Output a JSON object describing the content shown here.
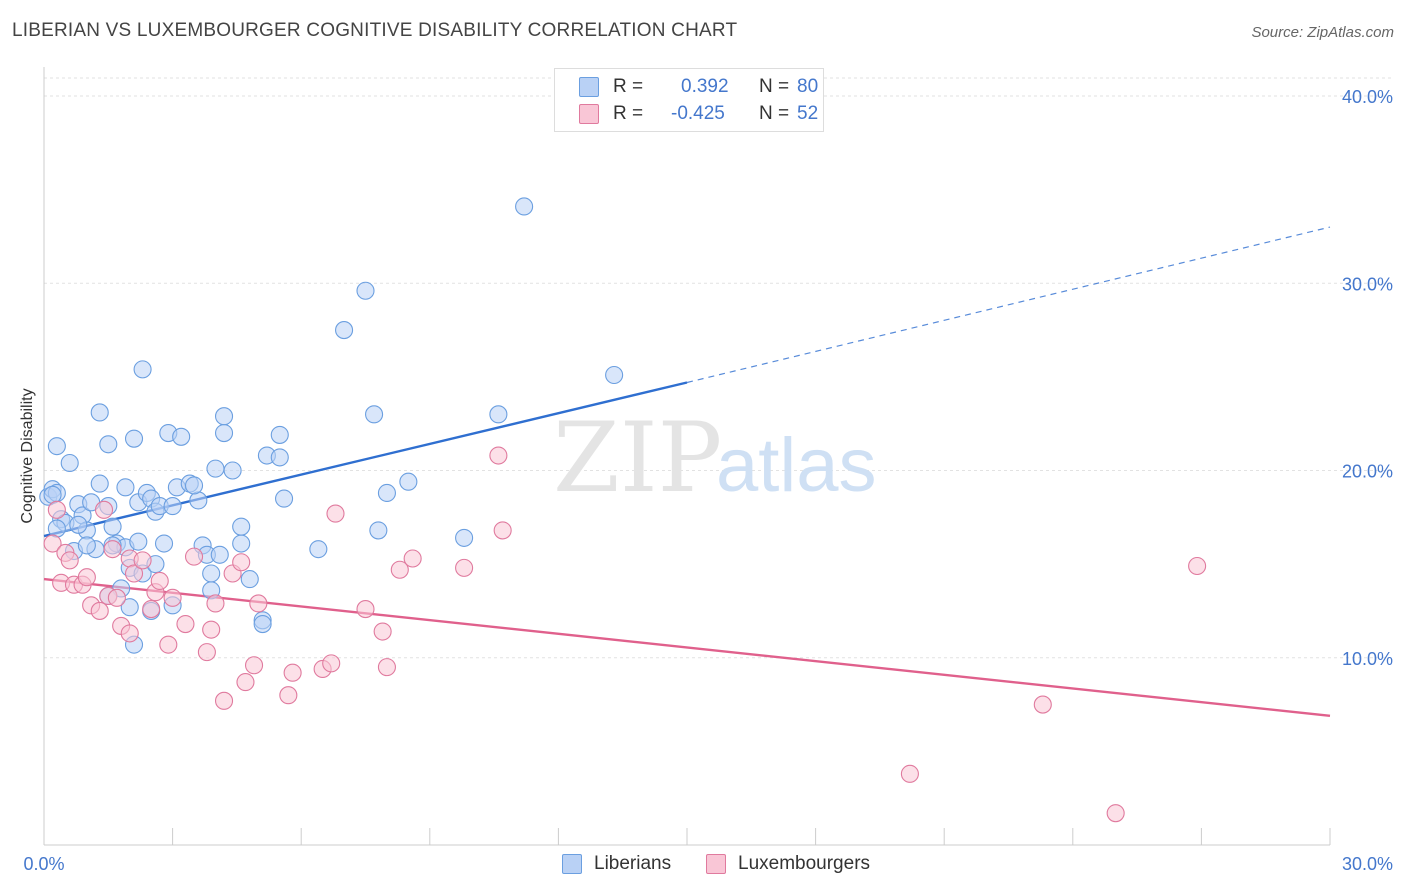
{
  "title": "LIBERIAN VS LUXEMBOURGER COGNITIVE DISABILITY CORRELATION CHART",
  "source": "Source: ZipAtlas.com",
  "watermark": {
    "zip": "ZIP",
    "atlas": "atlas"
  },
  "legend": {
    "r_label": "R =",
    "n_label": "N =",
    "rows": [
      {
        "r": "0.392",
        "n": "80",
        "color": "#6b9fe0",
        "fill": "#b9d1f5"
      },
      {
        "r": "-0.425",
        "n": "52",
        "color": "#e07a9e",
        "fill": "#f9c6d6"
      }
    ]
  },
  "bottom_legend": [
    "Liberians",
    "Luxembourgers"
  ],
  "chart_data": {
    "type": "scatter",
    "xlabel": "",
    "ylabel": "Cognitive Disability",
    "xlim": [
      0,
      30
    ],
    "ylim": [
      0,
      40
    ],
    "x_ticks": [
      "0.0%",
      "30.0%"
    ],
    "y_ticks": [
      {
        "value": 10,
        "label": "10.0%"
      },
      {
        "value": 20,
        "label": "20.0%"
      },
      {
        "value": 30,
        "label": "30.0%"
      },
      {
        "value": 40,
        "label": "40.0%"
      }
    ],
    "grid": true,
    "legend_position": "top-center",
    "series": [
      {
        "name": "Liberians",
        "color": "#6b9fe0",
        "fill": "#b9d1f5",
        "trend": {
          "x0": 0,
          "y0": 16.5,
          "x1": 15,
          "y1": 24.7,
          "dash_to_x": 30,
          "dash_to_y": 33.0,
          "color": "#2f6fd0"
        },
        "points": [
          [
            0.1,
            18.6
          ],
          [
            0.2,
            19.0
          ],
          [
            0.3,
            18.8
          ],
          [
            0.3,
            21.3
          ],
          [
            0.4,
            17.4
          ],
          [
            0.5,
            17.2
          ],
          [
            0.6,
            20.4
          ],
          [
            0.7,
            15.7
          ],
          [
            0.8,
            18.2
          ],
          [
            0.9,
            17.6
          ],
          [
            1.0,
            16.8
          ],
          [
            1.1,
            18.3
          ],
          [
            1.2,
            15.8
          ],
          [
            1.3,
            23.1
          ],
          [
            1.3,
            19.3
          ],
          [
            1.5,
            18.1
          ],
          [
            1.5,
            21.4
          ],
          [
            1.6,
            17.0
          ],
          [
            1.7,
            16.1
          ],
          [
            1.8,
            13.7
          ],
          [
            1.9,
            15.9
          ],
          [
            1.9,
            19.1
          ],
          [
            2.0,
            12.7
          ],
          [
            2.1,
            10.7
          ],
          [
            2.0,
            14.8
          ],
          [
            2.1,
            21.7
          ],
          [
            2.2,
            18.3
          ],
          [
            2.3,
            25.4
          ],
          [
            2.3,
            14.5
          ],
          [
            2.4,
            18.8
          ],
          [
            2.5,
            12.5
          ],
          [
            2.5,
            18.5
          ],
          [
            2.6,
            17.8
          ],
          [
            2.7,
            18.1
          ],
          [
            2.8,
            16.1
          ],
          [
            2.9,
            22.0
          ],
          [
            3.0,
            12.8
          ],
          [
            3.0,
            18.1
          ],
          [
            3.1,
            19.1
          ],
          [
            3.2,
            21.8
          ],
          [
            3.4,
            19.3
          ],
          [
            3.6,
            18.4
          ],
          [
            3.7,
            16.0
          ],
          [
            3.8,
            15.5
          ],
          [
            3.9,
            13.6
          ],
          [
            3.9,
            14.5
          ],
          [
            4.0,
            20.1
          ],
          [
            4.1,
            15.5
          ],
          [
            4.2,
            22.0
          ],
          [
            4.2,
            22.9
          ],
          [
            4.4,
            20.0
          ],
          [
            4.6,
            17.0
          ],
          [
            4.6,
            16.1
          ],
          [
            4.8,
            14.2
          ],
          [
            5.1,
            12.0
          ],
          [
            5.1,
            11.8
          ],
          [
            5.2,
            20.8
          ],
          [
            5.5,
            21.9
          ],
          [
            5.5,
            20.7
          ],
          [
            5.6,
            18.5
          ],
          [
            6.4,
            15.8
          ],
          [
            7.0,
            27.5
          ],
          [
            7.5,
            29.6
          ],
          [
            7.7,
            23.0
          ],
          [
            7.8,
            16.8
          ],
          [
            8.0,
            18.8
          ],
          [
            8.5,
            19.4
          ],
          [
            9.8,
            16.4
          ],
          [
            10.6,
            23.0
          ],
          [
            11.2,
            34.1
          ],
          [
            13.3,
            25.1
          ],
          [
            0.2,
            18.7
          ],
          [
            0.3,
            16.9
          ],
          [
            1.5,
            13.3
          ],
          [
            1.6,
            16.0
          ],
          [
            0.8,
            17.1
          ],
          [
            1.0,
            16.0
          ],
          [
            3.5,
            19.2
          ],
          [
            2.2,
            16.2
          ],
          [
            2.6,
            15.0
          ]
        ]
      },
      {
        "name": "Luxembourgers",
        "color": "#e07a9e",
        "fill": "#f9c6d6",
        "trend": {
          "x0": 0,
          "y0": 14.2,
          "x1": 30,
          "y1": 6.9,
          "color": "#e0608c"
        },
        "points": [
          [
            0.2,
            16.1
          ],
          [
            0.3,
            17.9
          ],
          [
            0.4,
            14.0
          ],
          [
            0.5,
            15.6
          ],
          [
            0.6,
            15.2
          ],
          [
            0.7,
            13.9
          ],
          [
            0.9,
            13.9
          ],
          [
            1.0,
            14.3
          ],
          [
            1.1,
            12.8
          ],
          [
            1.3,
            12.5
          ],
          [
            1.4,
            17.9
          ],
          [
            1.5,
            13.3
          ],
          [
            1.6,
            15.8
          ],
          [
            1.7,
            13.2
          ],
          [
            1.8,
            11.7
          ],
          [
            2.0,
            11.3
          ],
          [
            2.0,
            15.3
          ],
          [
            2.1,
            14.5
          ],
          [
            2.3,
            15.2
          ],
          [
            2.5,
            12.6
          ],
          [
            2.6,
            13.5
          ],
          [
            2.7,
            14.1
          ],
          [
            2.9,
            10.7
          ],
          [
            3.0,
            13.2
          ],
          [
            3.3,
            11.8
          ],
          [
            3.5,
            15.4
          ],
          [
            3.8,
            10.3
          ],
          [
            3.9,
            11.5
          ],
          [
            4.0,
            12.9
          ],
          [
            4.2,
            7.7
          ],
          [
            4.4,
            14.5
          ],
          [
            4.6,
            15.1
          ],
          [
            4.7,
            8.7
          ],
          [
            4.9,
            9.6
          ],
          [
            5.0,
            12.9
          ],
          [
            5.7,
            8.0
          ],
          [
            5.8,
            9.2
          ],
          [
            6.5,
            9.4
          ],
          [
            6.7,
            9.7
          ],
          [
            6.8,
            17.7
          ],
          [
            7.5,
            12.6
          ],
          [
            7.9,
            11.4
          ],
          [
            8.0,
            9.5
          ],
          [
            8.3,
            14.7
          ],
          [
            8.6,
            15.3
          ],
          [
            9.8,
            14.8
          ],
          [
            10.7,
            16.8
          ],
          [
            10.6,
            20.8
          ],
          [
            20.2,
            3.8
          ],
          [
            23.3,
            7.5
          ],
          [
            25.0,
            1.7
          ],
          [
            26.9,
            14.9
          ]
        ]
      }
    ]
  }
}
